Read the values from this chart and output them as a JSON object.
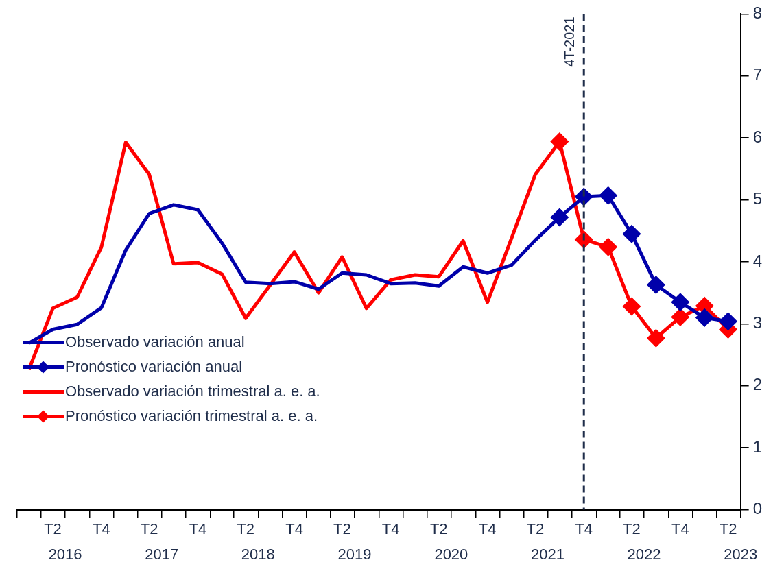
{
  "chart_data": {
    "type": "line",
    "x": [
      "2016-02-15",
      "2016-05-15",
      "2016-08-15",
      "2016-11-15",
      "2017-02-15",
      "2017-05-15",
      "2017-08-15",
      "2017-11-15",
      "2018-02-15",
      "2018-05-15",
      "2018-08-15",
      "2018-11-15",
      "2019-02-15",
      "2019-05-15",
      "2019-08-15",
      "2019-11-15",
      "2020-02-15",
      "2020-05-15",
      "2020-08-15",
      "2020-11-15",
      "2021-02-15",
      "2021-05-15",
      "2021-08-15",
      "2021-11-15",
      "2022-02-15",
      "2022-05-15",
      "2022-08-15",
      "2022-11-15",
      "2023-02-15",
      "2023-05-15"
    ],
    "series": [
      {
        "name": "Observado variación anual",
        "color": "#0000aa",
        "marker": "none",
        "values": [
          2.69,
          2.91,
          2.99,
          3.26,
          4.19,
          4.78,
          4.92,
          4.84,
          4.3,
          3.67,
          3.65,
          3.68,
          3.56,
          3.82,
          3.79,
          3.65,
          3.66,
          3.61,
          3.92,
          3.82,
          3.95,
          4.35,
          4.72,
          null,
          null,
          null,
          null,
          null,
          null,
          null
        ]
      },
      {
        "name": "Pronóstico variación anual",
        "color": "#0000aa",
        "marker": "diamond",
        "values": [
          null,
          null,
          null,
          null,
          null,
          null,
          null,
          null,
          null,
          null,
          null,
          null,
          null,
          null,
          null,
          null,
          null,
          null,
          null,
          null,
          null,
          null,
          4.72,
          5.05,
          5.07,
          4.45,
          3.63,
          3.35,
          3.1,
          3.04
        ]
      },
      {
        "name": "Observado variación trimestral a. e. a.",
        "color": "#ff0000",
        "marker": "none",
        "values": [
          2.27,
          3.25,
          3.43,
          4.24,
          5.93,
          5.41,
          3.97,
          3.99,
          3.8,
          3.09,
          3.62,
          4.16,
          3.5,
          4.08,
          3.25,
          3.71,
          3.79,
          3.76,
          4.34,
          3.35,
          4.39,
          5.41,
          5.94,
          null,
          null,
          null,
          null,
          null,
          null,
          null
        ]
      },
      {
        "name": "Pronóstico variación trimestral a. e. a.",
        "color": "#ff0000",
        "marker": "diamond",
        "values": [
          null,
          null,
          null,
          null,
          null,
          null,
          null,
          null,
          null,
          null,
          null,
          null,
          null,
          null,
          null,
          null,
          null,
          null,
          null,
          null,
          null,
          null,
          5.94,
          4.36,
          4.24,
          3.28,
          2.77,
          3.11,
          3.29,
          2.91
        ]
      }
    ],
    "xlim": [
      "2016-01-01",
      "2023-07-01"
    ],
    "xticks": [
      {
        "value": "2016-01-01",
        "label": null
      },
      {
        "value": "2016-04-01",
        "label": null
      },
      {
        "value": "2016-05-15",
        "label": "T2"
      },
      {
        "value": "2016-07-01",
        "label": null
      },
      {
        "value": "2016-10-01",
        "label": null
      },
      {
        "value": "2016-11-15",
        "label": "T4"
      },
      {
        "value": "2017-01-01",
        "label": null
      },
      {
        "value": "2017-04-01",
        "label": null
      },
      {
        "value": "2017-05-15",
        "label": "T2"
      },
      {
        "value": "2017-07-01",
        "label": null
      },
      {
        "value": "2017-10-01",
        "label": null
      },
      {
        "value": "2017-11-15",
        "label": "T4"
      },
      {
        "value": "2018-01-01",
        "label": null
      },
      {
        "value": "2018-04-01",
        "label": null
      },
      {
        "value": "2018-05-15",
        "label": "T2"
      },
      {
        "value": "2018-07-01",
        "label": null
      },
      {
        "value": "2018-10-01",
        "label": null
      },
      {
        "value": "2018-11-15",
        "label": "T4"
      },
      {
        "value": "2019-01-01",
        "label": null
      },
      {
        "value": "2019-04-01",
        "label": null
      },
      {
        "value": "2019-05-15",
        "label": "T2"
      },
      {
        "value": "2019-07-01",
        "label": null
      },
      {
        "value": "2019-10-01",
        "label": null
      },
      {
        "value": "2019-11-15",
        "label": "T4"
      },
      {
        "value": "2020-01-01",
        "label": null
      },
      {
        "value": "2020-04-01",
        "label": null
      },
      {
        "value": "2020-05-15",
        "label": "T2"
      },
      {
        "value": "2020-07-01",
        "label": null
      },
      {
        "value": "2020-10-01",
        "label": null
      },
      {
        "value": "2020-11-15",
        "label": "T4"
      },
      {
        "value": "2021-01-01",
        "label": null
      },
      {
        "value": "2021-04-01",
        "label": null
      },
      {
        "value": "2021-05-15",
        "label": "T2"
      },
      {
        "value": "2021-07-01",
        "label": null
      },
      {
        "value": "2021-10-01",
        "label": null
      },
      {
        "value": "2021-11-15",
        "label": "T4"
      },
      {
        "value": "2022-01-01",
        "label": null
      },
      {
        "value": "2022-04-01",
        "label": null
      },
      {
        "value": "2022-05-15",
        "label": "T2"
      },
      {
        "value": "2022-07-01",
        "label": null
      },
      {
        "value": "2022-10-01",
        "label": null
      },
      {
        "value": "2022-11-15",
        "label": "T4"
      },
      {
        "value": "2023-01-01",
        "label": null
      },
      {
        "value": "2023-04-01",
        "label": null
      },
      {
        "value": "2023-05-15",
        "label": "T2"
      },
      {
        "value": "2023-07-01",
        "label": null
      }
    ],
    "ylim": [
      0,
      8
    ],
    "yticks": [
      0,
      1,
      2,
      3,
      4,
      5,
      6,
      7,
      8
    ],
    "ref_lines": [
      {
        "axis": "x",
        "value": "2021-11-15",
        "label": "4T-2021",
        "color": "#1f2d4a",
        "line_style": "dashed"
      }
    ],
    "annotations": [
      "2016",
      "2017",
      "2018",
      "2019",
      "2020",
      "2021",
      "2022",
      "2023"
    ],
    "legend": "bottom left",
    "grid": false,
    "line_style": "solid"
  }
}
